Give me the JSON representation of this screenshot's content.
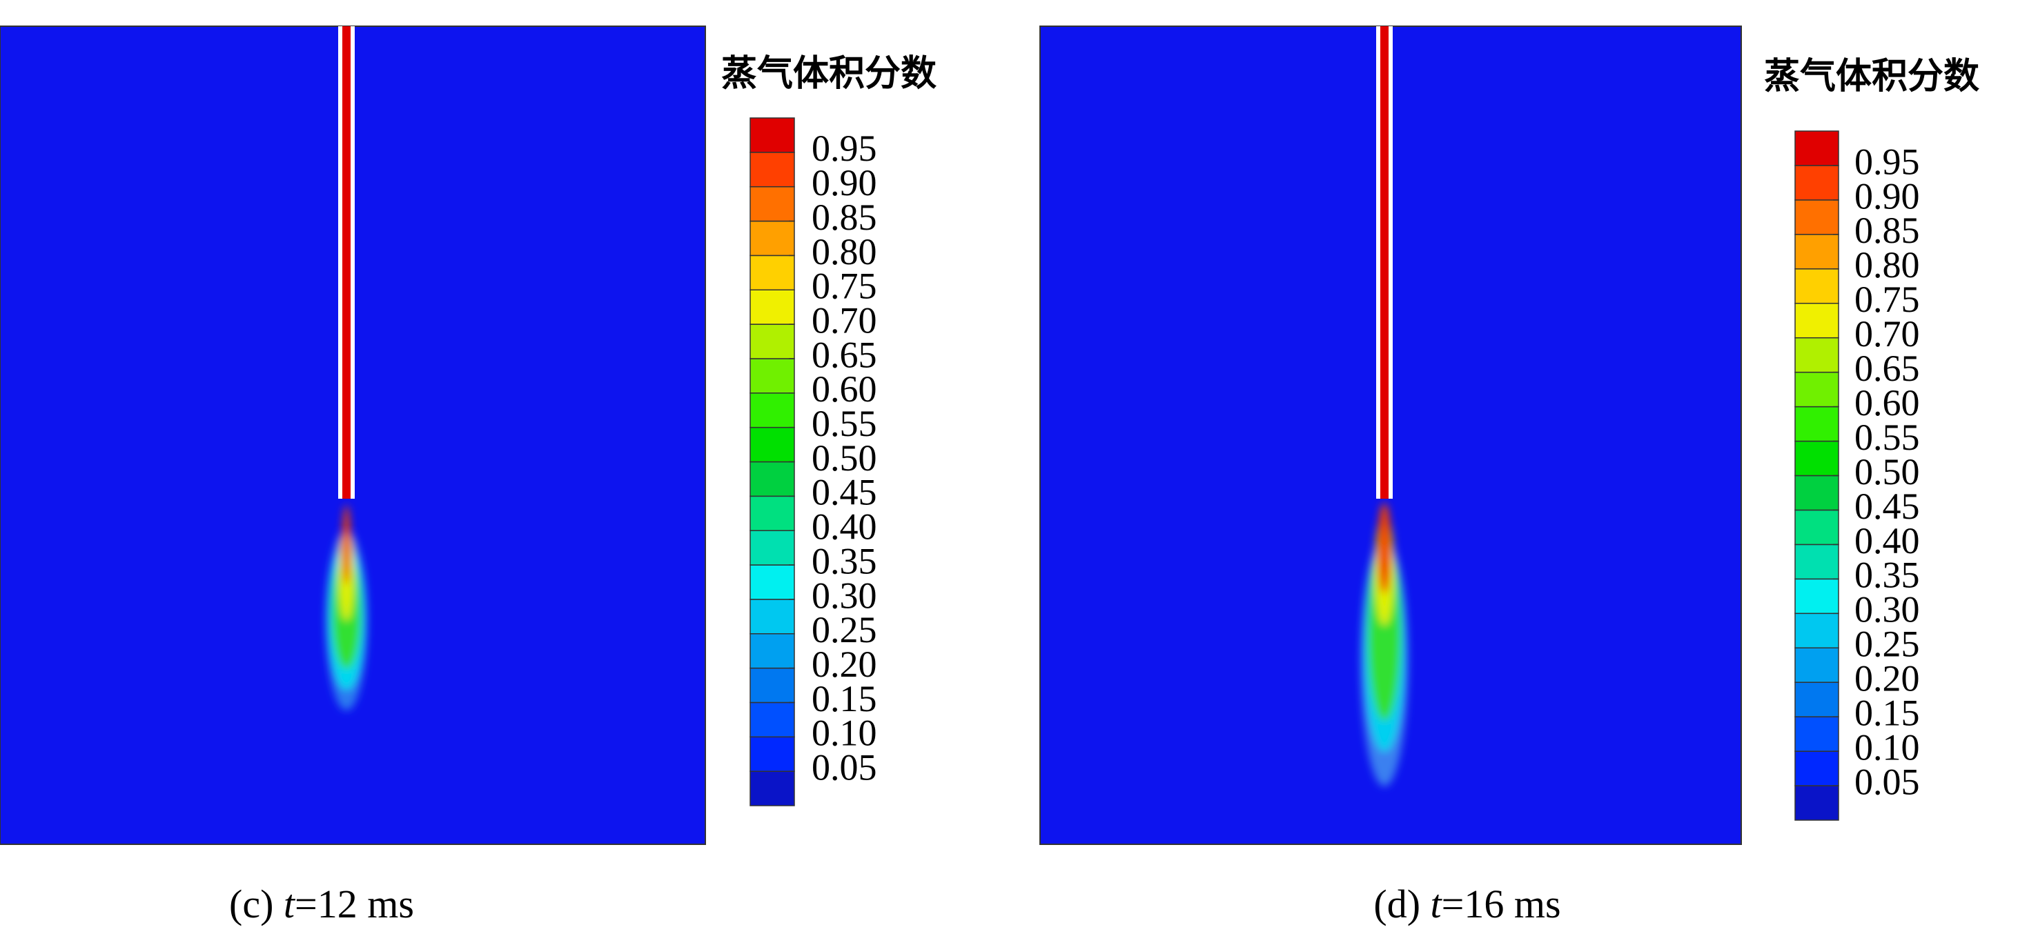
{
  "chart_data": [
    {
      "type": "contour",
      "colorbar_title": "蒸气体积分数",
      "caption": {
        "label": "(c)",
        "variable": "t",
        "text": "=12 ms"
      },
      "colorbar_lim": [
        0,
        1
      ],
      "colorbar_ticks": [
        0.95,
        {
          "value": 0.9,
          "label": "0.90"
        },
        0.85,
        {
          "value": 0.8,
          "label": "0.80"
        },
        0.75,
        {
          "value": 0.7,
          "label": "0.70"
        },
        0.65,
        {
          "value": 0.6,
          "label": "0.60"
        },
        0.55,
        {
          "value": 0.5,
          "label": "0.50"
        },
        0.45,
        {
          "value": 0.4,
          "label": "0.40"
        },
        0.35,
        {
          "value": 0.3,
          "label": "0.30"
        },
        0.25,
        {
          "value": 0.2,
          "label": "0.20"
        },
        0.15,
        {
          "value": 0.1,
          "label": "0.10"
        },
        0.05
      ],
      "colors": [
        "#0a14c8",
        "#0028ff",
        "#0050ff",
        "#0078f0",
        "#00a0f0",
        "#00c8f0",
        "#00f0f0",
        "#00e0b0",
        "#00e080",
        "#00d040",
        "#00e000",
        "#30f000",
        "#70f000",
        "#b0f000",
        "#f0f000",
        "#ffd000",
        "#ffa000",
        "#ff7000",
        "#ff4000",
        "#e00000"
      ]
    },
    {
      "type": "contour",
      "colorbar_title": "蒸气体积分数",
      "caption": {
        "label": "(d)",
        "variable": "t",
        "text": "=16 ms"
      },
      "colorbar_lim": [
        0,
        1
      ],
      "colorbar_ticks": [
        0.95,
        {
          "value": 0.9,
          "label": "0.90"
        },
        0.85,
        {
          "value": 0.8,
          "label": "0.80"
        },
        0.75,
        {
          "value": 0.7,
          "label": "0.70"
        },
        0.65,
        {
          "value": 0.6,
          "label": "0.60"
        },
        0.55,
        {
          "value": 0.5,
          "label": "0.50"
        },
        0.45,
        {
          "value": 0.4,
          "label": "0.40"
        },
        0.35,
        {
          "value": 0.3,
          "label": "0.30"
        },
        0.25,
        {
          "value": 0.2,
          "label": "0.20"
        },
        0.15,
        {
          "value": 0.1,
          "label": "0.10"
        },
        0.05
      ],
      "colors": [
        "#0a14c8",
        "#0028ff",
        "#0050ff",
        "#0078f0",
        "#00a0f0",
        "#00c8f0",
        "#00f0f0",
        "#00e0b0",
        "#00e080",
        "#00d040",
        "#00e000",
        "#30f000",
        "#70f000",
        "#b0f000",
        "#f0f000",
        "#ffd000",
        "#ffa000",
        "#ff7000",
        "#ff4000",
        "#e00000"
      ]
    }
  ]
}
